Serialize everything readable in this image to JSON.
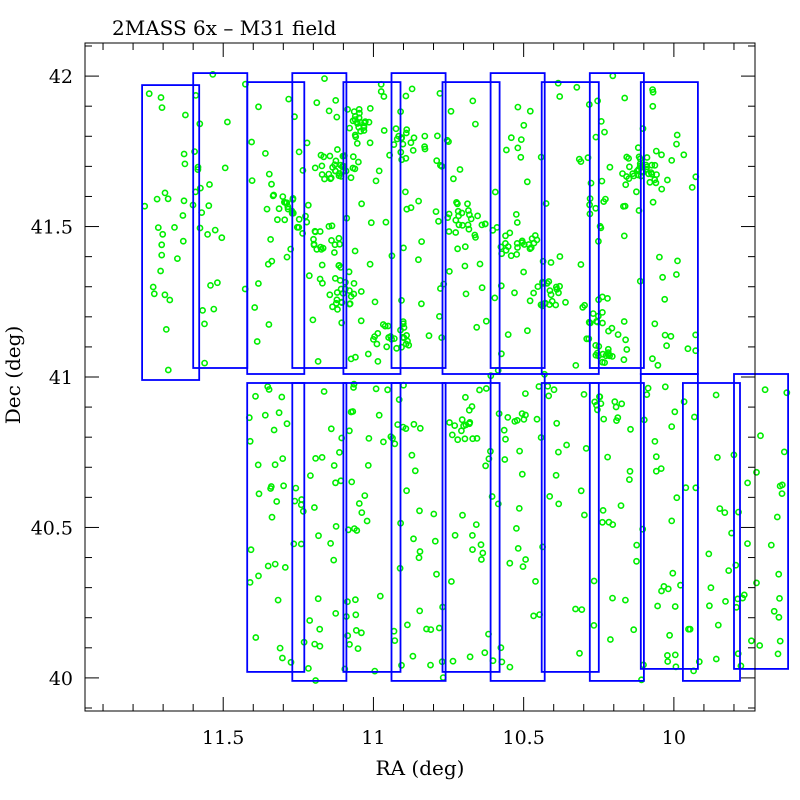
{
  "chart_data": {
    "type": "scatter",
    "title": "2MASS 6x  –  M31 field",
    "xlabel": "RA (deg)",
    "ylabel": "Dec (deg)",
    "xlim": [
      11.96,
      9.73
    ],
    "ylim": [
      39.89,
      42.11
    ],
    "x_ticks": [
      11.5,
      11,
      10.5,
      10
    ],
    "x_tick_labels": [
      "11.5",
      "11",
      "10.5",
      "10"
    ],
    "y_ticks": [
      40,
      40.5,
      41,
      41.5,
      42
    ],
    "y_tick_labels": [
      "40",
      "40.5",
      "41",
      "41.5",
      "42"
    ],
    "grid": false,
    "frame_color": "#0000ff",
    "point_color": "#00ee00",
    "frames": [
      {
        "ra": [
          11.77,
          11.58
        ],
        "dec": [
          41.97,
          40.99
        ]
      },
      {
        "ra": [
          11.6,
          11.42
        ],
        "dec": [
          42.01,
          41.03
        ]
      },
      {
        "ra": [
          11.42,
          11.23
        ],
        "dec": [
          41.98,
          41.01
        ]
      },
      {
        "ra": [
          11.27,
          11.09
        ],
        "dec": [
          42.01,
          41.03
        ]
      },
      {
        "ra": [
          11.1,
          10.91
        ],
        "dec": [
          41.98,
          41.01
        ]
      },
      {
        "ra": [
          10.94,
          10.76
        ],
        "dec": [
          42.01,
          41.03
        ]
      },
      {
        "ra": [
          10.77,
          10.58
        ],
        "dec": [
          41.98,
          41.01
        ]
      },
      {
        "ra": [
          10.61,
          10.43
        ],
        "dec": [
          42.01,
          41.03
        ]
      },
      {
        "ra": [
          10.44,
          10.25
        ],
        "dec": [
          41.98,
          41.01
        ]
      },
      {
        "ra": [
          10.28,
          10.1
        ],
        "dec": [
          42.01,
          41.03
        ]
      },
      {
        "ra": [
          10.11,
          9.92
        ],
        "dec": [
          41.98,
          41.01
        ]
      },
      {
        "ra": [
          11.42,
          11.23
        ],
        "dec": [
          40.98,
          40.02
        ]
      },
      {
        "ra": [
          11.27,
          11.09
        ],
        "dec": [
          40.98,
          39.99
        ]
      },
      {
        "ra": [
          11.1,
          10.91
        ],
        "dec": [
          40.98,
          40.02
        ]
      },
      {
        "ra": [
          10.94,
          10.76
        ],
        "dec": [
          40.98,
          39.99
        ]
      },
      {
        "ra": [
          10.77,
          10.58
        ],
        "dec": [
          40.98,
          40.02
        ]
      },
      {
        "ra": [
          10.61,
          10.43
        ],
        "dec": [
          41.01,
          39.99
        ]
      },
      {
        "ra": [
          10.44,
          10.25
        ],
        "dec": [
          40.98,
          40.02
        ]
      },
      {
        "ra": [
          10.28,
          10.1
        ],
        "dec": [
          40.98,
          39.99
        ]
      },
      {
        "ra": [
          10.11,
          9.92
        ],
        "dec": [
          41.01,
          40.03
        ]
      },
      {
        "ra": [
          9.97,
          9.78
        ],
        "dec": [
          40.98,
          39.99
        ]
      },
      {
        "ra": [
          9.8,
          9.62
        ],
        "dec": [
          41.01,
          40.03
        ]
      }
    ],
    "clusters": [
      {
        "ra": 11.05,
        "dec": 41.85,
        "n": 20
      },
      {
        "ra": 11.12,
        "dec": 41.7,
        "n": 25
      },
      {
        "ra": 10.88,
        "dec": 41.77,
        "n": 14
      },
      {
        "ra": 11.28,
        "dec": 41.55,
        "n": 22
      },
      {
        "ra": 11.15,
        "dec": 41.45,
        "n": 18
      },
      {
        "ra": 11.1,
        "dec": 41.28,
        "n": 20
      },
      {
        "ra": 10.95,
        "dec": 41.13,
        "n": 22
      },
      {
        "ra": 10.7,
        "dec": 41.53,
        "n": 25
      },
      {
        "ra": 10.52,
        "dec": 41.43,
        "n": 22
      },
      {
        "ra": 10.4,
        "dec": 41.27,
        "n": 18
      },
      {
        "ra": 10.1,
        "dec": 41.68,
        "n": 35
      },
      {
        "ra": 10.25,
        "dec": 41.2,
        "n": 14
      },
      {
        "ra": 10.22,
        "dec": 41.08,
        "n": 16
      },
      {
        "ra": 10.7,
        "dec": 40.83,
        "n": 12
      },
      {
        "ra": 10.22,
        "dec": 40.92,
        "n": 10
      }
    ],
    "field_points": 560
  }
}
